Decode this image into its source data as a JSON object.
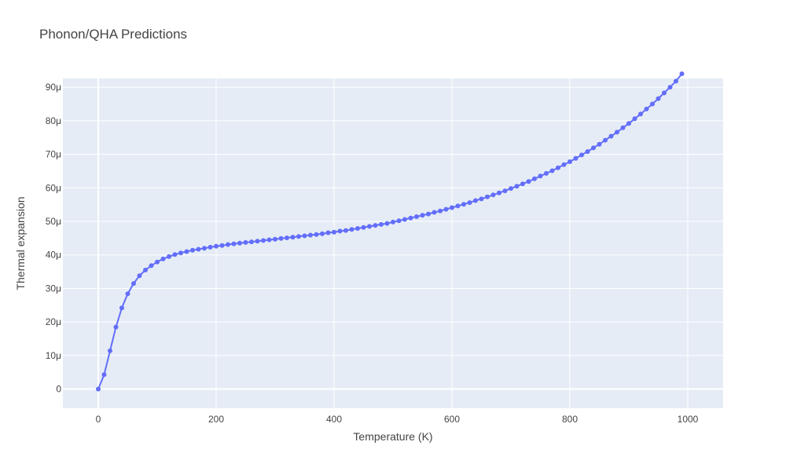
{
  "chart_data": {
    "type": "line",
    "mode": "lines+markers",
    "title": "Phonon/QHA Predictions",
    "xlabel": "Temperature (K)",
    "ylabel": "Thermal expansion",
    "xlim": [
      -60,
      1060
    ],
    "ylim": [
      -5.7e-06,
      9.26e-05
    ],
    "x_ticks": [
      0,
      200,
      400,
      600,
      800,
      1000
    ],
    "x_tick_labels": [
      "0",
      "200",
      "400",
      "600",
      "800",
      "1000"
    ],
    "y_ticks": [
      0,
      1e-05,
      2e-05,
      3e-05,
      4e-05,
      5e-05,
      6e-05,
      7e-05,
      8e-05,
      9e-05
    ],
    "y_tick_labels": [
      "0",
      "10μ",
      "20μ",
      "30μ",
      "40μ",
      "50μ",
      "60μ",
      "70μ",
      "80μ",
      "90μ"
    ],
    "grid": true,
    "legend": "none",
    "colors": {
      "series": "#636efa",
      "plot_bg": "#e5ecf6",
      "grid": "#ffffff",
      "text": "#444444"
    },
    "series": [
      {
        "x": [
          0,
          10,
          20,
          30,
          40,
          50,
          60,
          70,
          80,
          90,
          100,
          110,
          120,
          130,
          140,
          150,
          160,
          170,
          180,
          190,
          200,
          210,
          220,
          230,
          240,
          250,
          260,
          270,
          280,
          290,
          300,
          310,
          320,
          330,
          340,
          350,
          360,
          370,
          380,
          390,
          400,
          410,
          420,
          430,
          440,
          450,
          460,
          470,
          480,
          490,
          500,
          510,
          520,
          530,
          540,
          550,
          560,
          570,
          580,
          590,
          600,
          610,
          620,
          630,
          640,
          650,
          660,
          670,
          680,
          690,
          700,
          710,
          720,
          730,
          740,
          750,
          760,
          770,
          780,
          790,
          800,
          810,
          820,
          830,
          840,
          850,
          860,
          870,
          880,
          890,
          900,
          910,
          920,
          930,
          940,
          950,
          960,
          970,
          980,
          990
        ],
        "y": [
          0,
          4.3e-06,
          1.14e-05,
          1.85e-05,
          2.42e-05,
          2.84e-05,
          3.15e-05,
          3.38e-05,
          3.55e-05,
          3.68e-05,
          3.79e-05,
          3.88e-05,
          3.95e-05,
          4.01e-05,
          4.06e-05,
          4.1e-05,
          4.14e-05,
          4.17e-05,
          4.2e-05,
          4.23e-05,
          4.26e-05,
          4.28e-05,
          4.31e-05,
          4.33e-05,
          4.35e-05,
          4.37e-05,
          4.39e-05,
          4.41e-05,
          4.43e-05,
          4.45e-05,
          4.47e-05,
          4.49e-05,
          4.51e-05,
          4.53e-05,
          4.55e-05,
          4.57e-05,
          4.59e-05,
          4.61e-05,
          4.63e-05,
          4.66e-05,
          4.68e-05,
          4.71e-05,
          4.73e-05,
          4.76e-05,
          4.79e-05,
          4.82e-05,
          4.85e-05,
          4.88e-05,
          4.91e-05,
          4.94e-05,
          4.98e-05,
          5.02e-05,
          5.06e-05,
          5.1e-05,
          5.14e-05,
          5.18e-05,
          5.22e-05,
          5.27e-05,
          5.31e-05,
          5.36e-05,
          5.41e-05,
          5.46e-05,
          5.51e-05,
          5.56e-05,
          5.62e-05,
          5.67e-05,
          5.73e-05,
          5.79e-05,
          5.85e-05,
          5.91e-05,
          5.98e-05,
          6.05e-05,
          6.12e-05,
          6.19e-05,
          6.27e-05,
          6.35e-05,
          6.43e-05,
          6.51e-05,
          6.6e-05,
          6.69e-05,
          6.78e-05,
          6.88e-05,
          6.98e-05,
          7.08e-05,
          7.19e-05,
          7.3e-05,
          7.42e-05,
          7.54e-05,
          7.66e-05,
          7.79e-05,
          7.92e-05,
          8.06e-05,
          8.2e-05,
          8.35e-05,
          8.5e-05,
          8.66e-05,
          8.83e-05,
          9e-05,
          9.18e-05,
          9.4e-05
        ]
      }
    ]
  }
}
